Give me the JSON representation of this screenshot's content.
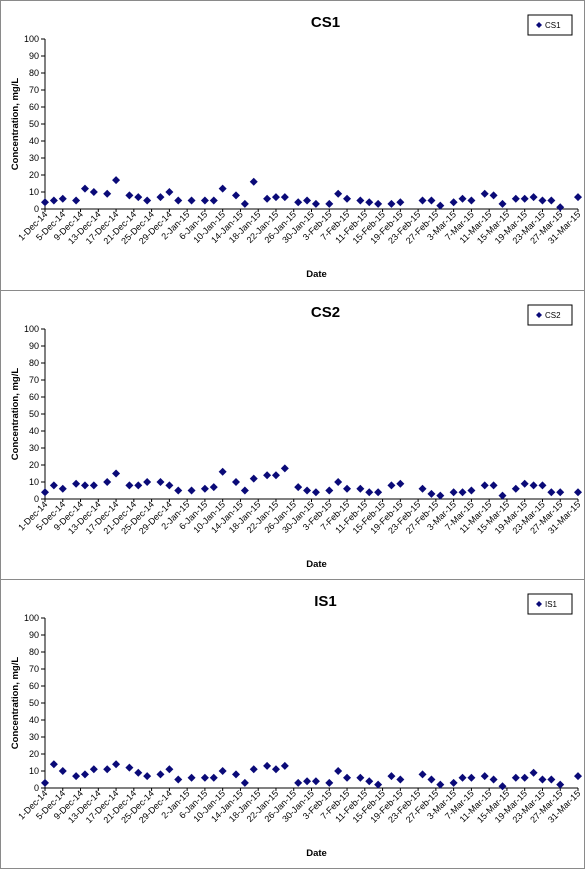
{
  "colors": {
    "marker": "#0a0a78",
    "axis": "#000000",
    "border": "#8a8a8a"
  },
  "chart_data": [
    {
      "type": "scatter",
      "title": "CS1",
      "xlabel": "Date",
      "ylabel": "Concentration, mg/L",
      "ylim": [
        0,
        100
      ],
      "yticks": [
        0,
        10,
        20,
        30,
        40,
        50,
        60,
        70,
        80,
        90,
        100
      ],
      "xlim": [
        "2014-12-01",
        "2015-03-31"
      ],
      "xtick_labels": [
        "1-Dec-14",
        "5-Dec-14",
        "9-Dec-14",
        "13-Dec-14",
        "17-Dec-14",
        "21-Dec-14",
        "25-Dec-14",
        "29-Dec-14",
        "2-Jan-15",
        "6-Jan-15",
        "10-Jan-15",
        "14-Jan-15",
        "18-Jan-15",
        "22-Jan-15",
        "26-Jan-15",
        "30-Jan-15",
        "3-Feb-15",
        "7-Feb-15",
        "11-Feb-15",
        "15-Feb-15",
        "19-Feb-15",
        "23-Feb-15",
        "27-Feb-15",
        "3-Mar-15",
        "7-Mar-15",
        "11-Mar-15",
        "15-Mar-15",
        "19-Mar-15",
        "23-Mar-15",
        "27-Mar-15",
        "31-Mar-15"
      ],
      "grid": false,
      "legend_position": "top-right",
      "series": [
        {
          "name": "CS1",
          "points": [
            [
              "2014-12-01",
              4
            ],
            [
              "2014-12-03",
              5
            ],
            [
              "2014-12-05",
              6
            ],
            [
              "2014-12-08",
              5
            ],
            [
              "2014-12-10",
              12
            ],
            [
              "2014-12-12",
              10
            ],
            [
              "2014-12-15",
              9
            ],
            [
              "2014-12-17",
              17
            ],
            [
              "2014-12-20",
              8
            ],
            [
              "2014-12-22",
              7
            ],
            [
              "2014-12-24",
              5
            ],
            [
              "2014-12-27",
              7
            ],
            [
              "2014-12-29",
              10
            ],
            [
              "2014-12-31",
              5
            ],
            [
              "2015-01-03",
              5
            ],
            [
              "2015-01-06",
              5
            ],
            [
              "2015-01-08",
              5
            ],
            [
              "2015-01-10",
              12
            ],
            [
              "2015-01-13",
              8
            ],
            [
              "2015-01-15",
              3
            ],
            [
              "2015-01-17",
              16
            ],
            [
              "2015-01-20",
              6
            ],
            [
              "2015-01-22",
              7
            ],
            [
              "2015-01-24",
              7
            ],
            [
              "2015-01-27",
              4
            ],
            [
              "2015-01-29",
              5
            ],
            [
              "2015-01-31",
              3
            ],
            [
              "2015-02-03",
              3
            ],
            [
              "2015-02-05",
              9
            ],
            [
              "2015-02-07",
              6
            ],
            [
              "2015-02-10",
              5
            ],
            [
              "2015-02-12",
              4
            ],
            [
              "2015-02-14",
              3
            ],
            [
              "2015-02-17",
              3
            ],
            [
              "2015-02-19",
              4
            ],
            [
              "2015-02-24",
              5
            ],
            [
              "2015-02-26",
              5
            ],
            [
              "2015-02-28",
              2
            ],
            [
              "2015-03-03",
              4
            ],
            [
              "2015-03-05",
              6
            ],
            [
              "2015-03-07",
              5
            ],
            [
              "2015-03-10",
              9
            ],
            [
              "2015-03-12",
              8
            ],
            [
              "2015-03-14",
              3
            ],
            [
              "2015-03-17",
              6
            ],
            [
              "2015-03-19",
              6
            ],
            [
              "2015-03-21",
              7
            ],
            [
              "2015-03-23",
              5
            ],
            [
              "2015-03-25",
              5
            ],
            [
              "2015-03-27",
              1
            ],
            [
              "2015-03-31",
              7
            ]
          ]
        }
      ]
    },
    {
      "type": "scatter",
      "title": "CS2",
      "xlabel": "Date",
      "ylabel": "Concentration, mg/L",
      "ylim": [
        0,
        100
      ],
      "yticks": [
        0,
        10,
        20,
        30,
        40,
        50,
        60,
        70,
        80,
        90,
        100
      ],
      "xlim": [
        "2014-12-01",
        "2015-03-31"
      ],
      "xtick_labels": [
        "1-Dec-14",
        "5-Dec-14",
        "9-Dec-14",
        "13-Dec-14",
        "17-Dec-14",
        "21-Dec-14",
        "25-Dec-14",
        "29-Dec-14",
        "2-Jan-15",
        "6-Jan-15",
        "10-Jan-15",
        "14-Jan-15",
        "18-Jan-15",
        "22-Jan-15",
        "26-Jan-15",
        "30-Jan-15",
        "3-Feb-15",
        "7-Feb-15",
        "11-Feb-15",
        "15-Feb-15",
        "19-Feb-15",
        "23-Feb-15",
        "27-Feb-15",
        "3-Mar-15",
        "7-Mar-15",
        "11-Mar-15",
        "15-Mar-15",
        "19-Mar-15",
        "23-Mar-15",
        "27-Mar-15",
        "31-Mar-15"
      ],
      "grid": false,
      "legend_position": "top-right",
      "series": [
        {
          "name": "CS2",
          "points": [
            [
              "2014-12-01",
              4
            ],
            [
              "2014-12-03",
              8
            ],
            [
              "2014-12-05",
              6
            ],
            [
              "2014-12-08",
              9
            ],
            [
              "2014-12-10",
              8
            ],
            [
              "2014-12-12",
              8
            ],
            [
              "2014-12-15",
              10
            ],
            [
              "2014-12-17",
              15
            ],
            [
              "2014-12-20",
              8
            ],
            [
              "2014-12-22",
              8
            ],
            [
              "2014-12-24",
              10
            ],
            [
              "2014-12-27",
              10
            ],
            [
              "2014-12-29",
              8
            ],
            [
              "2014-12-31",
              5
            ],
            [
              "2015-01-03",
              5
            ],
            [
              "2015-01-06",
              6
            ],
            [
              "2015-01-08",
              7
            ],
            [
              "2015-01-10",
              16
            ],
            [
              "2015-01-13",
              10
            ],
            [
              "2015-01-15",
              5
            ],
            [
              "2015-01-17",
              12
            ],
            [
              "2015-01-20",
              14
            ],
            [
              "2015-01-22",
              14
            ],
            [
              "2015-01-24",
              18
            ],
            [
              "2015-01-27",
              7
            ],
            [
              "2015-01-29",
              5
            ],
            [
              "2015-01-31",
              4
            ],
            [
              "2015-02-03",
              5
            ],
            [
              "2015-02-05",
              10
            ],
            [
              "2015-02-07",
              6
            ],
            [
              "2015-02-10",
              6
            ],
            [
              "2015-02-12",
              4
            ],
            [
              "2015-02-14",
              4
            ],
            [
              "2015-02-17",
              8
            ],
            [
              "2015-02-19",
              9
            ],
            [
              "2015-02-24",
              6
            ],
            [
              "2015-02-26",
              3
            ],
            [
              "2015-02-28",
              2
            ],
            [
              "2015-03-03",
              4
            ],
            [
              "2015-03-05",
              4
            ],
            [
              "2015-03-07",
              5
            ],
            [
              "2015-03-10",
              8
            ],
            [
              "2015-03-12",
              8
            ],
            [
              "2015-03-14",
              2
            ],
            [
              "2015-03-17",
              6
            ],
            [
              "2015-03-19",
              9
            ],
            [
              "2015-03-21",
              8
            ],
            [
              "2015-03-23",
              8
            ],
            [
              "2015-03-25",
              4
            ],
            [
              "2015-03-27",
              4
            ],
            [
              "2015-03-31",
              4
            ]
          ]
        }
      ]
    },
    {
      "type": "scatter",
      "title": "IS1",
      "xlabel": "Date",
      "ylabel": "Concentration, mg/L",
      "ylim": [
        0,
        100
      ],
      "yticks": [
        0,
        10,
        20,
        30,
        40,
        50,
        60,
        70,
        80,
        90,
        100
      ],
      "xlim": [
        "2014-12-01",
        "2015-03-31"
      ],
      "xtick_labels": [
        "1-Dec-14",
        "5-Dec-14",
        "9-Dec-14",
        "13-Dec-14",
        "17-Dec-14",
        "21-Dec-14",
        "25-Dec-14",
        "29-Dec-14",
        "2-Jan-15",
        "6-Jan-15",
        "10-Jan-15",
        "14-Jan-15",
        "18-Jan-15",
        "22-Jan-15",
        "26-Jan-15",
        "30-Jan-15",
        "3-Feb-15",
        "7-Feb-15",
        "11-Feb-15",
        "15-Feb-15",
        "19-Feb-15",
        "23-Feb-15",
        "27-Feb-15",
        "3-Mar-15",
        "7-Mar-15",
        "11-Mar-15",
        "15-Mar-15",
        "19-Mar-15",
        "23-Mar-15",
        "27-Mar-15",
        "31-Mar-15"
      ],
      "grid": false,
      "legend_position": "top-right",
      "series": [
        {
          "name": "IS1",
          "points": [
            [
              "2014-12-01",
              3
            ],
            [
              "2014-12-03",
              14
            ],
            [
              "2014-12-05",
              10
            ],
            [
              "2014-12-08",
              7
            ],
            [
              "2014-12-10",
              8
            ],
            [
              "2014-12-12",
              11
            ],
            [
              "2014-12-15",
              11
            ],
            [
              "2014-12-17",
              14
            ],
            [
              "2014-12-20",
              12
            ],
            [
              "2014-12-22",
              9
            ],
            [
              "2014-12-24",
              7
            ],
            [
              "2014-12-27",
              8
            ],
            [
              "2014-12-29",
              11
            ],
            [
              "2014-12-31",
              5
            ],
            [
              "2015-01-03",
              6
            ],
            [
              "2015-01-06",
              6
            ],
            [
              "2015-01-08",
              6
            ],
            [
              "2015-01-10",
              10
            ],
            [
              "2015-01-13",
              8
            ],
            [
              "2015-01-15",
              3
            ],
            [
              "2015-01-17",
              11
            ],
            [
              "2015-01-20",
              13
            ],
            [
              "2015-01-22",
              11
            ],
            [
              "2015-01-24",
              13
            ],
            [
              "2015-01-27",
              3
            ],
            [
              "2015-01-29",
              4
            ],
            [
              "2015-01-31",
              4
            ],
            [
              "2015-02-03",
              3
            ],
            [
              "2015-02-05",
              10
            ],
            [
              "2015-02-07",
              6
            ],
            [
              "2015-02-10",
              6
            ],
            [
              "2015-02-12",
              4
            ],
            [
              "2015-02-14",
              2
            ],
            [
              "2015-02-17",
              7
            ],
            [
              "2015-02-19",
              5
            ],
            [
              "2015-02-24",
              8
            ],
            [
              "2015-02-26",
              5
            ],
            [
              "2015-02-28",
              2
            ],
            [
              "2015-03-03",
              3
            ],
            [
              "2015-03-05",
              6
            ],
            [
              "2015-03-07",
              6
            ],
            [
              "2015-03-10",
              7
            ],
            [
              "2015-03-12",
              5
            ],
            [
              "2015-03-14",
              1
            ],
            [
              "2015-03-17",
              6
            ],
            [
              "2015-03-19",
              6
            ],
            [
              "2015-03-21",
              9
            ],
            [
              "2015-03-23",
              5
            ],
            [
              "2015-03-25",
              5
            ],
            [
              "2015-03-27",
              2
            ],
            [
              "2015-03-31",
              7
            ]
          ]
        }
      ]
    }
  ]
}
